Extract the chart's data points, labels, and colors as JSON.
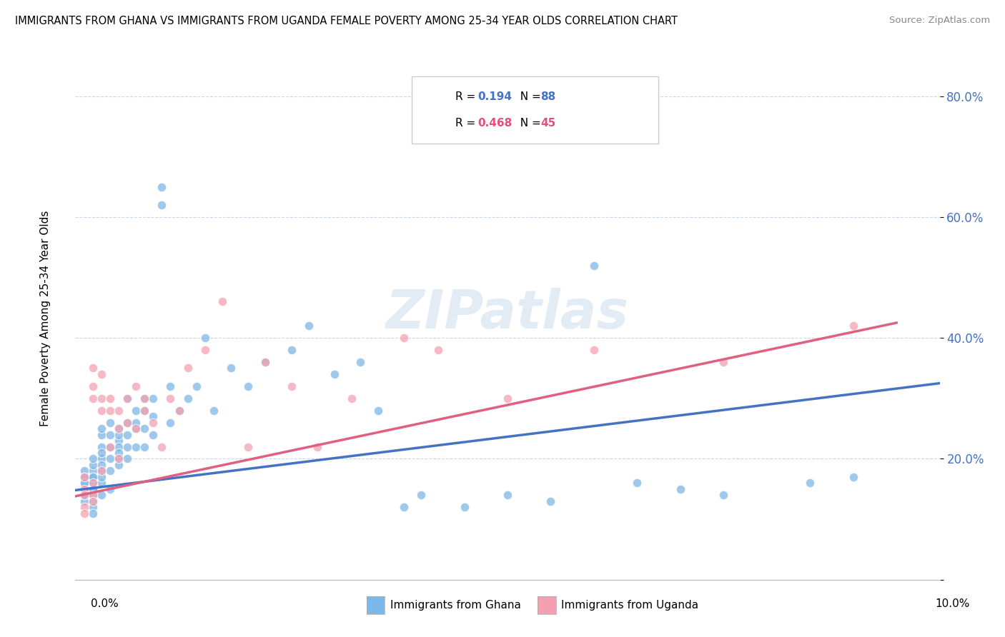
{
  "title": "IMMIGRANTS FROM GHANA VS IMMIGRANTS FROM UGANDA FEMALE POVERTY AMONG 25-34 YEAR OLDS CORRELATION CHART",
  "source": "Source: ZipAtlas.com",
  "ylabel": "Female Poverty Among 25-34 Year Olds",
  "legend_ghana": "Immigrants from Ghana",
  "legend_uganda": "Immigrants from Uganda",
  "ghana_R": 0.194,
  "ghana_N": 88,
  "uganda_R": 0.468,
  "uganda_N": 45,
  "ghana_color": "#7eb8e8",
  "uganda_color": "#f4a0b0",
  "ghana_line_color": "#4472c4",
  "uganda_line_color": "#e06080",
  "xmin": 0.0,
  "xmax": 0.1,
  "ymin": 0.0,
  "ymax": 0.88,
  "ghana_trend_x0": 0.0,
  "ghana_trend_y0": 0.148,
  "ghana_trend_x1": 0.1,
  "ghana_trend_y1": 0.325,
  "uganda_trend_x0": 0.0,
  "uganda_trend_y0": 0.138,
  "uganda_trend_x1": 0.095,
  "uganda_trend_y1": 0.425,
  "ghana_x": [
    0.001,
    0.001,
    0.001,
    0.001,
    0.001,
    0.001,
    0.001,
    0.001,
    0.001,
    0.002,
    0.002,
    0.002,
    0.002,
    0.002,
    0.002,
    0.002,
    0.002,
    0.002,
    0.002,
    0.002,
    0.002,
    0.003,
    0.003,
    0.003,
    0.003,
    0.003,
    0.003,
    0.003,
    0.003,
    0.003,
    0.003,
    0.004,
    0.004,
    0.004,
    0.004,
    0.004,
    0.004,
    0.005,
    0.005,
    0.005,
    0.005,
    0.005,
    0.005,
    0.005,
    0.006,
    0.006,
    0.006,
    0.006,
    0.006,
    0.007,
    0.007,
    0.007,
    0.007,
    0.008,
    0.008,
    0.008,
    0.008,
    0.009,
    0.009,
    0.009,
    0.01,
    0.01,
    0.011,
    0.011,
    0.012,
    0.013,
    0.014,
    0.015,
    0.016,
    0.018,
    0.02,
    0.022,
    0.025,
    0.027,
    0.03,
    0.033,
    0.035,
    0.038,
    0.04,
    0.045,
    0.05,
    0.055,
    0.06,
    0.065,
    0.07,
    0.075,
    0.085,
    0.09
  ],
  "ghana_y": [
    0.17,
    0.15,
    0.18,
    0.16,
    0.14,
    0.13,
    0.17,
    0.16,
    0.14,
    0.18,
    0.15,
    0.16,
    0.14,
    0.17,
    0.19,
    0.17,
    0.2,
    0.15,
    0.13,
    0.12,
    0.11,
    0.16,
    0.18,
    0.2,
    0.22,
    0.19,
    0.17,
    0.21,
    0.24,
    0.25,
    0.14,
    0.22,
    0.2,
    0.18,
    0.26,
    0.24,
    0.15,
    0.2,
    0.23,
    0.22,
    0.19,
    0.25,
    0.21,
    0.24,
    0.22,
    0.26,
    0.24,
    0.2,
    0.3,
    0.25,
    0.22,
    0.28,
    0.26,
    0.22,
    0.25,
    0.28,
    0.3,
    0.24,
    0.27,
    0.3,
    0.62,
    0.65,
    0.26,
    0.32,
    0.28,
    0.3,
    0.32,
    0.4,
    0.28,
    0.35,
    0.32,
    0.36,
    0.38,
    0.42,
    0.34,
    0.36,
    0.28,
    0.12,
    0.14,
    0.12,
    0.14,
    0.13,
    0.52,
    0.16,
    0.15,
    0.14,
    0.16,
    0.17
  ],
  "uganda_x": [
    0.001,
    0.001,
    0.001,
    0.001,
    0.001,
    0.002,
    0.002,
    0.002,
    0.002,
    0.002,
    0.002,
    0.003,
    0.003,
    0.003,
    0.003,
    0.004,
    0.004,
    0.004,
    0.005,
    0.005,
    0.005,
    0.006,
    0.006,
    0.007,
    0.007,
    0.008,
    0.008,
    0.009,
    0.01,
    0.011,
    0.012,
    0.013,
    0.015,
    0.017,
    0.02,
    0.022,
    0.025,
    0.028,
    0.032,
    0.038,
    0.042,
    0.05,
    0.06,
    0.075,
    0.09
  ],
  "uganda_y": [
    0.15,
    0.14,
    0.17,
    0.12,
    0.11,
    0.16,
    0.35,
    0.32,
    0.3,
    0.14,
    0.13,
    0.18,
    0.28,
    0.3,
    0.34,
    0.22,
    0.3,
    0.28,
    0.2,
    0.25,
    0.28,
    0.3,
    0.26,
    0.25,
    0.32,
    0.28,
    0.3,
    0.26,
    0.22,
    0.3,
    0.28,
    0.35,
    0.38,
    0.46,
    0.22,
    0.36,
    0.32,
    0.22,
    0.3,
    0.4,
    0.38,
    0.3,
    0.38,
    0.36,
    0.42
  ]
}
